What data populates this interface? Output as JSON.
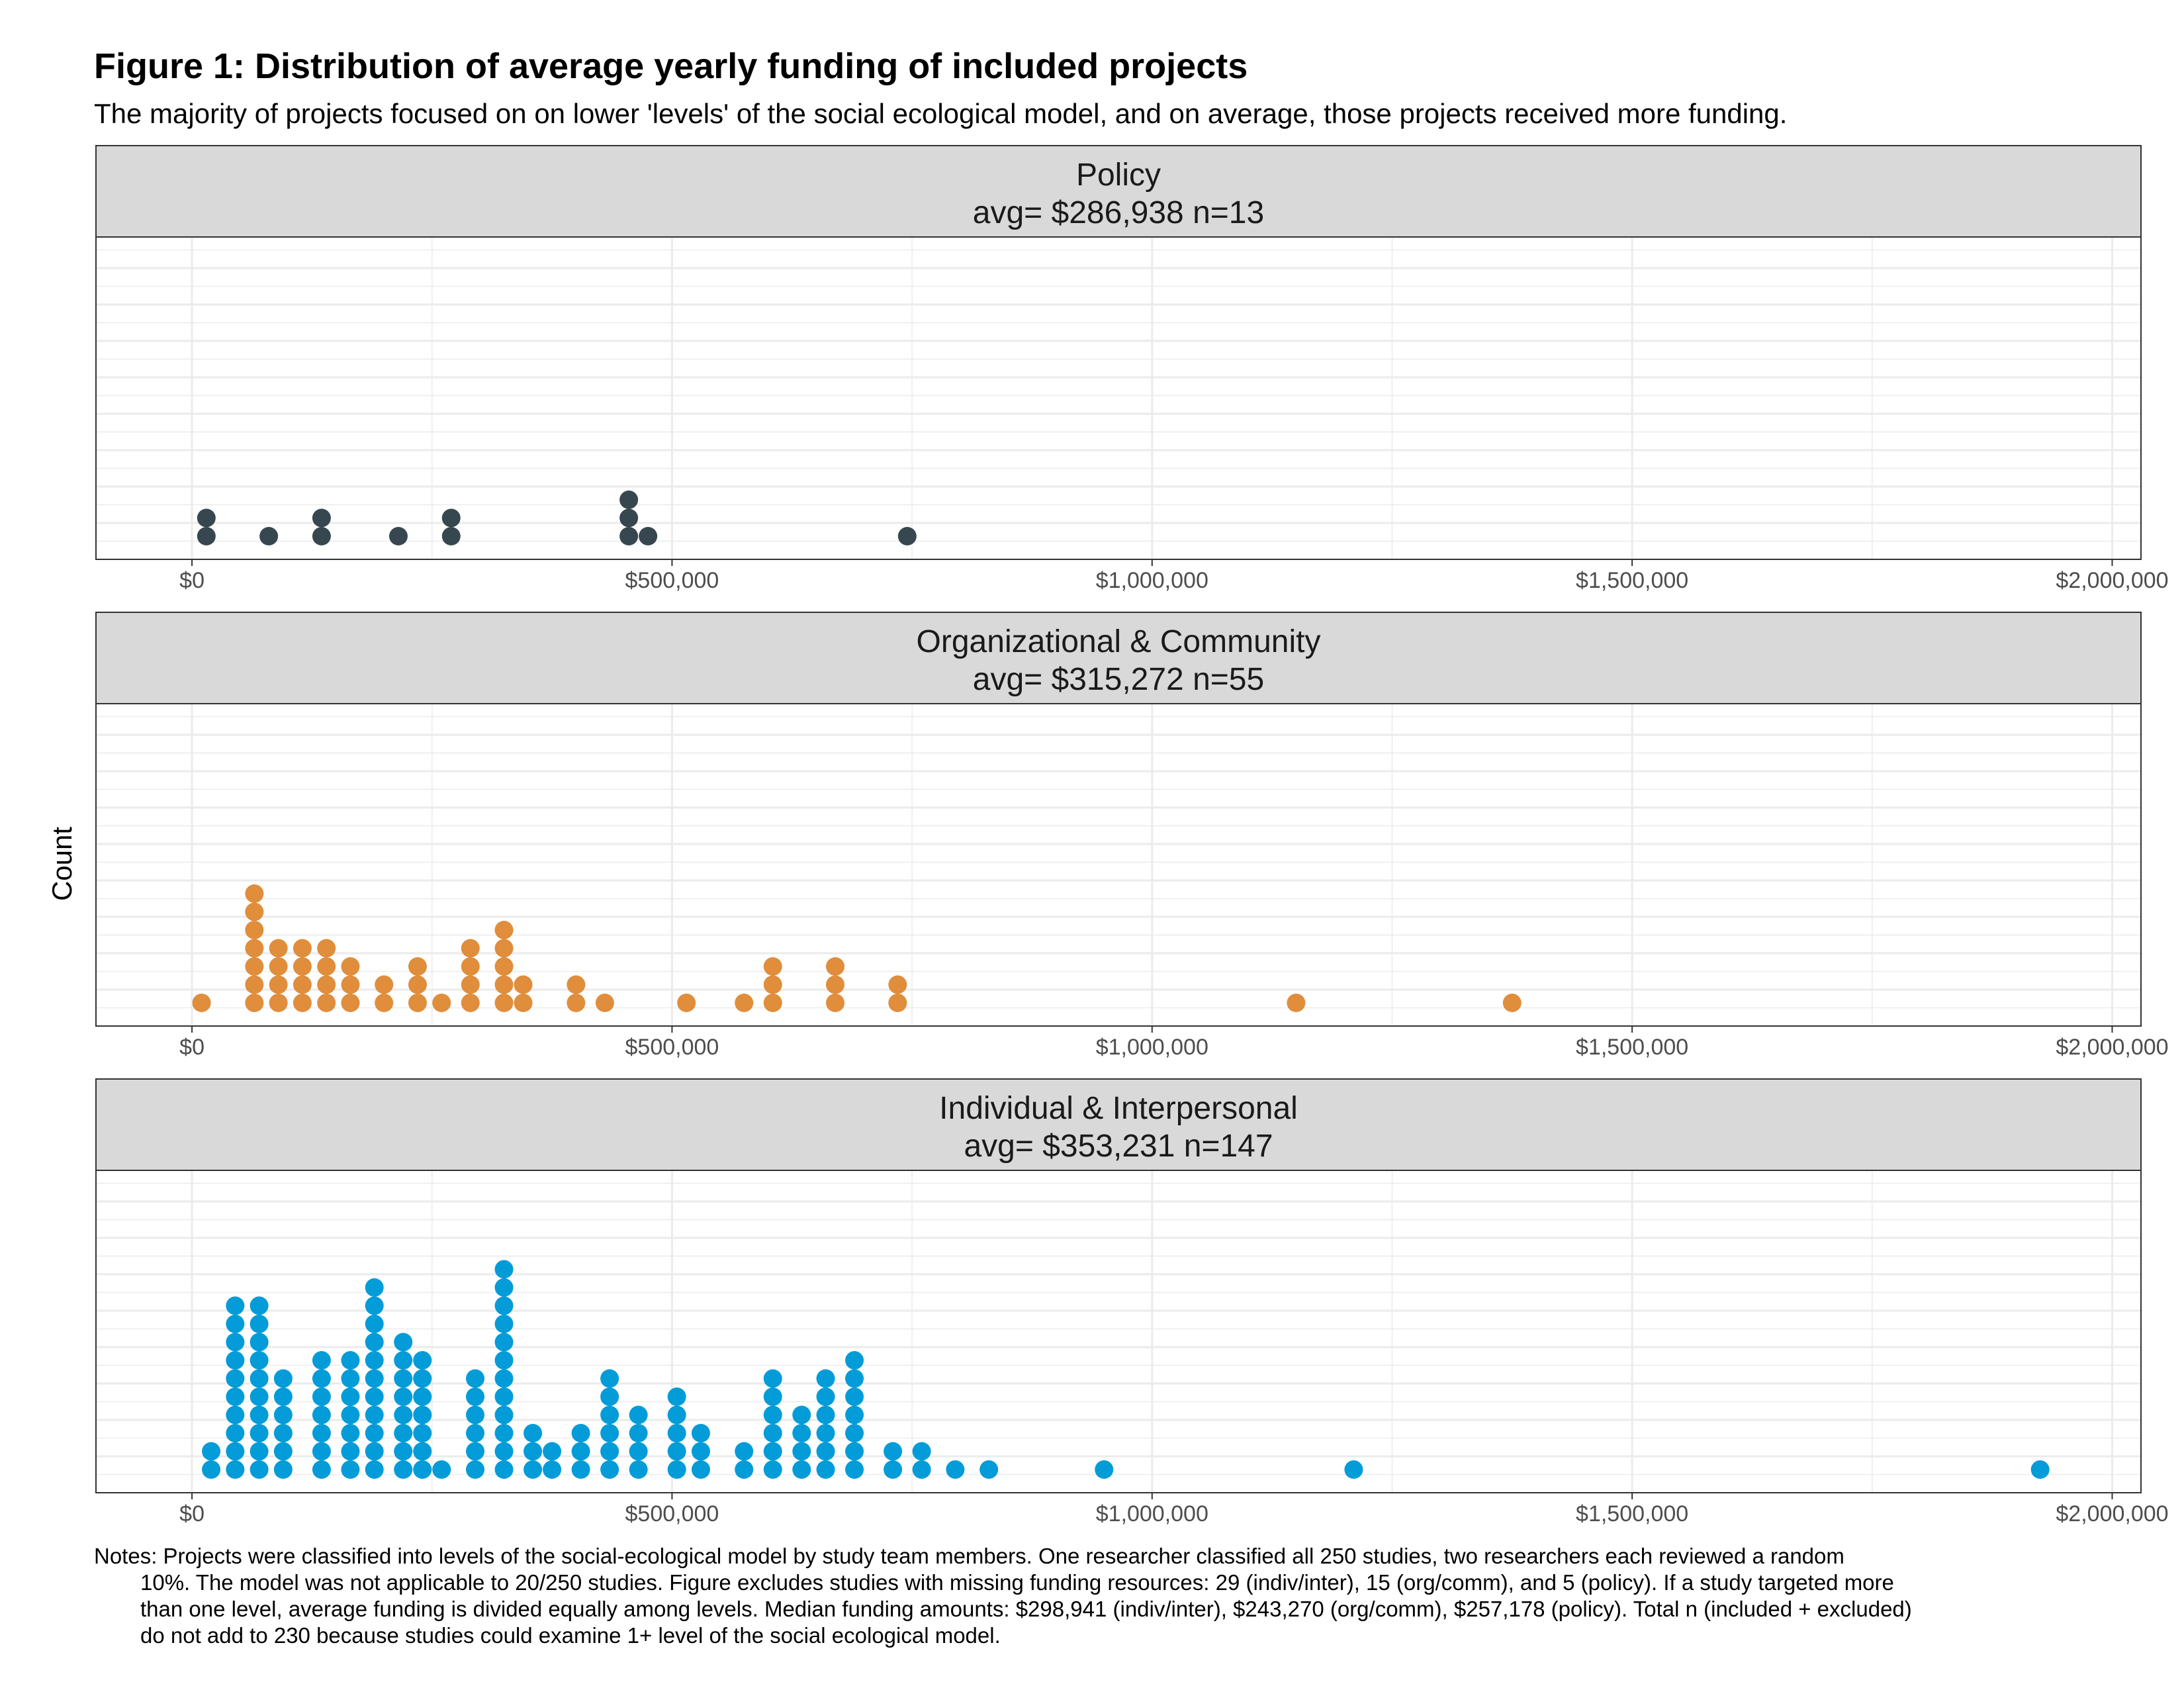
{
  "chart_data": {
    "type": "dotplot",
    "title": "Figure 1: Distribution of average yearly funding of included projects",
    "subtitle": "The majority of projects focused on on lower 'levels' of the social ecological model, and on average, those projects received more funding.",
    "ylabel": "Count",
    "xlim": [
      -100000,
      2030000
    ],
    "x_ticks": [
      0,
      500000,
      1000000,
      1500000,
      2000000
    ],
    "x_tick_labels": [
      "$0",
      "$500,000",
      "$1,000,000",
      "$1,500,000",
      "$2,000,000"
    ],
    "grid": true,
    "colors": {
      "Policy": "#37474f",
      "Organizational & Community": "#e08d3c",
      "Individual & Interpersonal": "#049cd8"
    },
    "panels": [
      {
        "name": "Policy",
        "stat_label": "avg= $286,938   n=13",
        "color": "#37474f",
        "bins": [
          [
            15000,
            2
          ],
          [
            80000,
            1
          ],
          [
            135000,
            2
          ],
          [
            215000,
            1
          ],
          [
            270000,
            2
          ],
          [
            455000,
            3
          ],
          [
            475000,
            1
          ],
          [
            745000,
            1
          ]
        ]
      },
      {
        "name": "Organizational & Community",
        "stat_label": "avg= $315,272   n=55",
        "color": "#e08d3c",
        "bins": [
          [
            10000,
            1
          ],
          [
            65000,
            7
          ],
          [
            90000,
            4
          ],
          [
            115000,
            4
          ],
          [
            140000,
            4
          ],
          [
            165000,
            3
          ],
          [
            200000,
            2
          ],
          [
            235000,
            3
          ],
          [
            260000,
            1
          ],
          [
            290000,
            4
          ],
          [
            325000,
            5
          ],
          [
            345000,
            2
          ],
          [
            400000,
            2
          ],
          [
            430000,
            1
          ],
          [
            515000,
            1
          ],
          [
            575000,
            1
          ],
          [
            605000,
            3
          ],
          [
            670000,
            3
          ],
          [
            735000,
            2
          ],
          [
            1150000,
            1
          ],
          [
            1375000,
            1
          ]
        ]
      },
      {
        "name": "Individual & Interpersonal",
        "stat_label": "avg= $353,231   n=147",
        "color": "#049cd8",
        "bins": [
          [
            20000,
            2
          ],
          [
            45000,
            10
          ],
          [
            70000,
            10
          ],
          [
            95000,
            6
          ],
          [
            135000,
            7
          ],
          [
            165000,
            7
          ],
          [
            190000,
            11
          ],
          [
            220000,
            8
          ],
          [
            240000,
            7
          ],
          [
            260000,
            1
          ],
          [
            295000,
            6
          ],
          [
            325000,
            12
          ],
          [
            355000,
            3
          ],
          [
            375000,
            2
          ],
          [
            405000,
            3
          ],
          [
            435000,
            6
          ],
          [
            465000,
            4
          ],
          [
            505000,
            5
          ],
          [
            530000,
            3
          ],
          [
            575000,
            2
          ],
          [
            605000,
            6
          ],
          [
            635000,
            4
          ],
          [
            660000,
            6
          ],
          [
            690000,
            7
          ],
          [
            730000,
            2
          ],
          [
            760000,
            2
          ],
          [
            795000,
            1
          ],
          [
            830000,
            1
          ],
          [
            950000,
            1
          ],
          [
            1210000,
            1
          ],
          [
            1925000,
            1
          ]
        ]
      }
    ],
    "notes": [
      "Notes: Projects were classified into levels of the social-ecological model by study team members. One researcher classified all 250 studies, two researchers each reviewed a random",
      "10%. The model was not applicable to 20/250 studies. Figure excludes studies with missing funding resources: 29 (indiv/inter), 15 (org/comm), and 5 (policy). If a study targeted more",
      "than one level, average funding is divided equally among levels. Median funding amounts: $298,941 (indiv/inter), $243,270 (org/comm), $257,178 (policy). Total n (included + excluded)",
      "do not add to 230 because studies could examine 1+ level of the social ecological model."
    ]
  }
}
